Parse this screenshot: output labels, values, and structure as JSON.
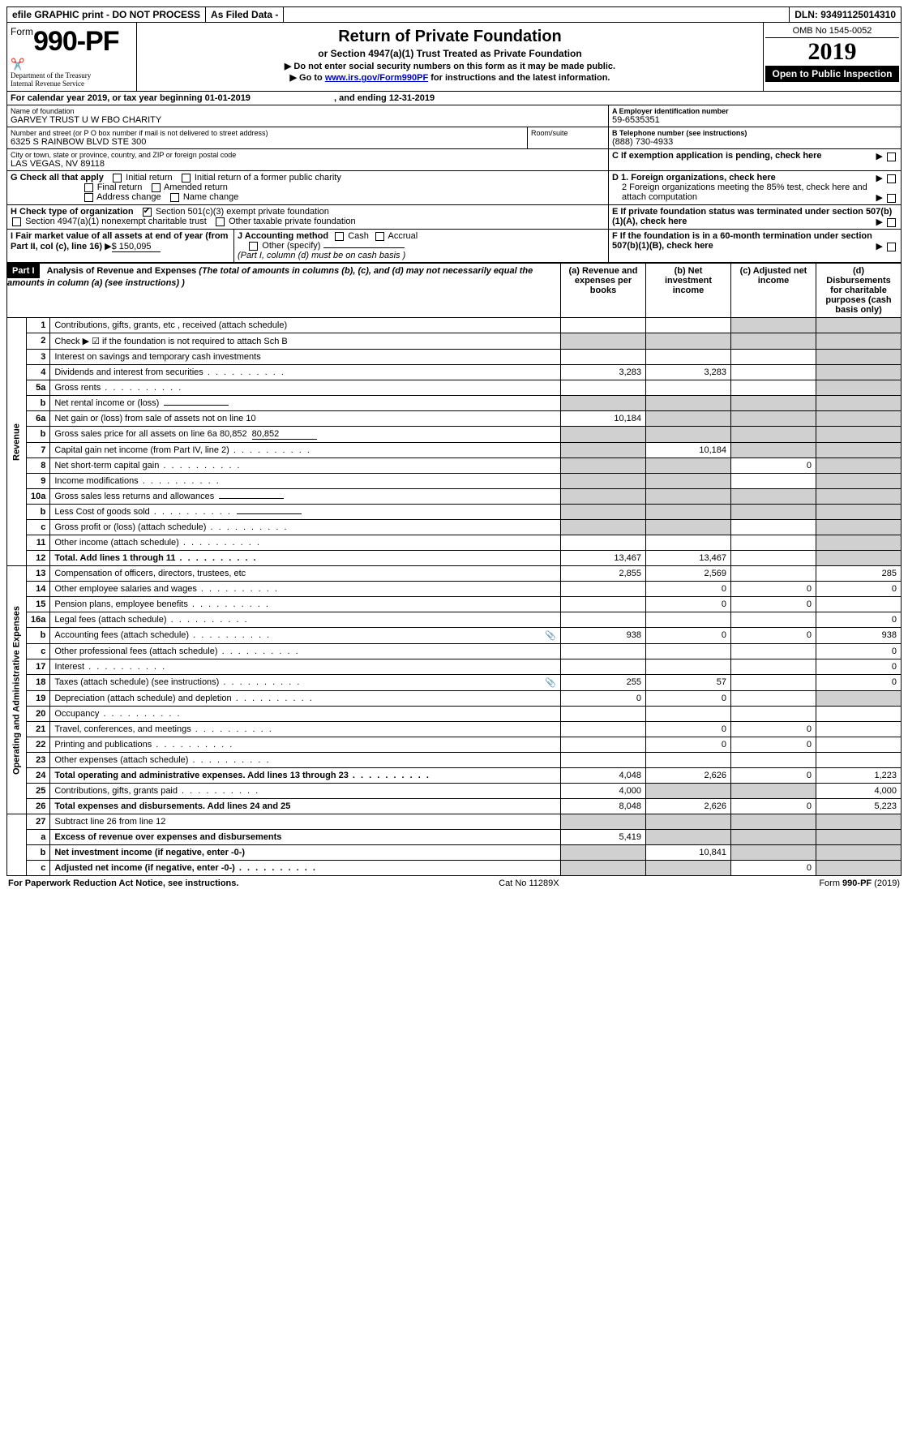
{
  "topbar": {
    "efile": "efile GRAPHIC print - DO NOT PROCESS",
    "asfiled": "As Filed Data -",
    "dln_label": "DLN:",
    "dln": "93491125014310"
  },
  "header": {
    "form_prefix": "Form",
    "form_number": "990-PF",
    "dept1": "Department of the Treasury",
    "dept2": "Internal Revenue Service",
    "title": "Return of Private Foundation",
    "subtitle": "or Section 4947(a)(1) Trust Treated as Private Foundation",
    "instr1": "▶ Do not enter social security numbers on this form as it may be made public.",
    "instr2_pre": "▶ Go to ",
    "instr2_link": "www.irs.gov/Form990PF",
    "instr2_post": " for instructions and the latest information.",
    "omb": "OMB No 1545-0052",
    "year": "2019",
    "open": "Open to Public Inspection"
  },
  "calendar": {
    "text_pre": "For calendar year 2019, or tax year beginning ",
    "begin": "01-01-2019",
    "text_mid": ", and ending ",
    "end": "12-31-2019"
  },
  "info": {
    "name_label": "Name of foundation",
    "name": "GARVEY TRUST U W FBO CHARITY",
    "ein_label": "A Employer identification number",
    "ein": "59-6535351",
    "addr_label": "Number and street (or P O  box number if mail is not delivered to street address)",
    "addr": "6325 S RAINBOW BLVD STE 300",
    "room_label": "Room/suite",
    "phone_label": "B Telephone number (see instructions)",
    "phone": "(888) 730-4933",
    "city_label": "City or town, state or province, country, and ZIP or foreign postal code",
    "city": "LAS VEGAS, NV  89118",
    "c_label": "C If exemption application is pending, check here",
    "g_label": "G Check all that apply",
    "g_initial": "Initial return",
    "g_initial_former": "Initial return of a former public charity",
    "g_final": "Final return",
    "g_amended": "Amended return",
    "g_address": "Address change",
    "g_name": "Name change",
    "d1": "D 1. Foreign organizations, check here",
    "d2": "2 Foreign organizations meeting the 85% test, check here and attach computation",
    "h_label": "H Check type of organization",
    "h_501c3": "Section 501(c)(3) exempt private foundation",
    "h_4947": "Section 4947(a)(1) nonexempt charitable trust",
    "h_other": "Other taxable private foundation",
    "e_label": "E  If private foundation status was terminated under section 507(b)(1)(A), check here",
    "i_label": "I Fair market value of all assets at end of year (from Part II, col  (c), line 16)",
    "i_value": "$  150,095",
    "j_label": "J Accounting method",
    "j_cash": "Cash",
    "j_accrual": "Accrual",
    "j_other": "Other (specify)",
    "j_note": "(Part I, column (d) must be on cash basis )",
    "f_label": "F  If the foundation is in a 60-month termination under section 507(b)(1)(B), check here"
  },
  "part1": {
    "label": "Part I",
    "title": "Analysis of Revenue and Expenses",
    "title_note": "(The total of amounts in columns (b), (c), and (d) may not necessarily equal the amounts in column (a) (see instructions) )",
    "col_a": "(a) Revenue and expenses per books",
    "col_b": "(b) Net investment income",
    "col_c": "(c) Adjusted net income",
    "col_d": "(d) Disbursements for charitable purposes (cash basis only)",
    "revenue_label": "Revenue",
    "expenses_label": "Operating and Administrative Expenses"
  },
  "rows": [
    {
      "n": "1",
      "d": "Contributions, gifts, grants, etc , received (attach schedule)",
      "a": "",
      "b": "",
      "c": "",
      "dd": "",
      "shadeB": false,
      "shadeC": true,
      "shadeD": true
    },
    {
      "n": "2",
      "d": "Check ▶ ☑ if the foundation is not required to attach Sch B",
      "a": "",
      "b": "",
      "c": "",
      "dd": "",
      "shadeA": true,
      "shadeB": true,
      "shadeC": true,
      "shadeD": true,
      "dotsInDesc": true
    },
    {
      "n": "3",
      "d": "Interest on savings and temporary cash investments",
      "a": "",
      "b": "",
      "c": "",
      "dd": "",
      "shadeD": true
    },
    {
      "n": "4",
      "d": "Dividends and interest from securities",
      "a": "3,283",
      "b": "3,283",
      "c": "",
      "dd": "",
      "shadeD": true,
      "dots": true
    },
    {
      "n": "5a",
      "d": "Gross rents",
      "a": "",
      "b": "",
      "c": "",
      "dd": "",
      "shadeD": true,
      "dots": true
    },
    {
      "n": "b",
      "d": "Net rental income or (loss)",
      "a": "",
      "b": "",
      "c": "",
      "dd": "",
      "shadeA": true,
      "shadeB": true,
      "shadeC": true,
      "shadeD": true,
      "inline": true
    },
    {
      "n": "6a",
      "d": "Net gain or (loss) from sale of assets not on line 10",
      "a": "10,184",
      "b": "",
      "c": "",
      "dd": "",
      "shadeB": true,
      "shadeC": true,
      "shadeD": true
    },
    {
      "n": "b",
      "d": "Gross sales price for all assets on line 6a",
      "a": "",
      "b": "",
      "c": "",
      "dd": "",
      "shadeA": true,
      "shadeB": true,
      "shadeC": true,
      "shadeD": true,
      "inline": true,
      "inline_val": "80,852"
    },
    {
      "n": "7",
      "d": "Capital gain net income (from Part IV, line 2)",
      "a": "",
      "b": "10,184",
      "c": "",
      "dd": "",
      "shadeA": true,
      "shadeC": true,
      "shadeD": true,
      "dots": true
    },
    {
      "n": "8",
      "d": "Net short-term capital gain",
      "a": "",
      "b": "",
      "c": "0",
      "dd": "",
      "shadeA": true,
      "shadeB": true,
      "shadeD": true,
      "dots": true
    },
    {
      "n": "9",
      "d": "Income modifications",
      "a": "",
      "b": "",
      "c": "",
      "dd": "",
      "shadeA": true,
      "shadeB": true,
      "shadeD": true,
      "dots": true
    },
    {
      "n": "10a",
      "d": "Gross sales less returns and allowances",
      "a": "",
      "b": "",
      "c": "",
      "dd": "",
      "shadeA": true,
      "shadeB": true,
      "shadeC": true,
      "shadeD": true,
      "inline": true
    },
    {
      "n": "b",
      "d": "Less  Cost of goods sold",
      "a": "",
      "b": "",
      "c": "",
      "dd": "",
      "shadeA": true,
      "shadeB": true,
      "shadeC": true,
      "shadeD": true,
      "inline": true,
      "dots": true
    },
    {
      "n": "c",
      "d": "Gross profit or (loss) (attach schedule)",
      "a": "",
      "b": "",
      "c": "",
      "dd": "",
      "shadeA": true,
      "shadeB": true,
      "shadeD": true,
      "dots": true
    },
    {
      "n": "11",
      "d": "Other income (attach schedule)",
      "a": "",
      "b": "",
      "c": "",
      "dd": "",
      "shadeD": true,
      "dots": true
    },
    {
      "n": "12",
      "d": "Total. Add lines 1 through 11",
      "a": "13,467",
      "b": "13,467",
      "c": "",
      "dd": "",
      "shadeD": true,
      "bold": true,
      "dots": true
    }
  ],
  "exp_rows": [
    {
      "n": "13",
      "d": "Compensation of officers, directors, trustees, etc",
      "a": "2,855",
      "b": "2,569",
      "c": "",
      "dd": "285"
    },
    {
      "n": "14",
      "d": "Other employee salaries and wages",
      "a": "",
      "b": "0",
      "c": "0",
      "dd": "0",
      "dots": true
    },
    {
      "n": "15",
      "d": "Pension plans, employee benefits",
      "a": "",
      "b": "0",
      "c": "0",
      "dd": "",
      "dots": true
    },
    {
      "n": "16a",
      "d": "Legal fees (attach schedule)",
      "a": "",
      "b": "",
      "c": "",
      "dd": "0",
      "dots": true
    },
    {
      "n": "b",
      "d": "Accounting fees (attach schedule)",
      "a": "938",
      "b": "0",
      "c": "0",
      "dd": "938",
      "dots": true,
      "clip": true
    },
    {
      "n": "c",
      "d": "Other professional fees (attach schedule)",
      "a": "",
      "b": "",
      "c": "",
      "dd": "0",
      "dots": true
    },
    {
      "n": "17",
      "d": "Interest",
      "a": "",
      "b": "",
      "c": "",
      "dd": "0",
      "dots": true
    },
    {
      "n": "18",
      "d": "Taxes (attach schedule) (see instructions)",
      "a": "255",
      "b": "57",
      "c": "",
      "dd": "0",
      "dots": true,
      "clip": true
    },
    {
      "n": "19",
      "d": "Depreciation (attach schedule) and depletion",
      "a": "0",
      "b": "0",
      "c": "",
      "dd": "",
      "shadeD": true,
      "dots": true
    },
    {
      "n": "20",
      "d": "Occupancy",
      "a": "",
      "b": "",
      "c": "",
      "dd": "",
      "dots": true
    },
    {
      "n": "21",
      "d": "Travel, conferences, and meetings",
      "a": "",
      "b": "0",
      "c": "0",
      "dd": "",
      "dots": true
    },
    {
      "n": "22",
      "d": "Printing and publications",
      "a": "",
      "b": "0",
      "c": "0",
      "dd": "",
      "dots": true
    },
    {
      "n": "23",
      "d": "Other expenses (attach schedule)",
      "a": "",
      "b": "",
      "c": "",
      "dd": "",
      "dots": true
    },
    {
      "n": "24",
      "d": "Total operating and administrative expenses. Add lines 13 through 23",
      "a": "4,048",
      "b": "2,626",
      "c": "0",
      "dd": "1,223",
      "bold": true,
      "dots": true
    },
    {
      "n": "25",
      "d": "Contributions, gifts, grants paid",
      "a": "4,000",
      "b": "",
      "c": "",
      "dd": "4,000",
      "shadeB": true,
      "shadeC": true,
      "dots": true
    },
    {
      "n": "26",
      "d": "Total expenses and disbursements. Add lines 24 and 25",
      "a": "8,048",
      "b": "2,626",
      "c": "0",
      "dd": "5,223",
      "bold": true
    }
  ],
  "final_rows": [
    {
      "n": "27",
      "d": "Subtract line 26 from line 12",
      "a": "",
      "b": "",
      "c": "",
      "dd": "",
      "shadeA": true,
      "shadeB": true,
      "shadeC": true,
      "shadeD": true
    },
    {
      "n": "a",
      "d": "Excess of revenue over expenses and disbursements",
      "a": "5,419",
      "b": "",
      "c": "",
      "dd": "",
      "bold": true,
      "shadeB": true,
      "shadeC": true,
      "shadeD": true
    },
    {
      "n": "b",
      "d": "Net investment income (if negative, enter -0-)",
      "a": "",
      "b": "10,841",
      "c": "",
      "dd": "",
      "bold": true,
      "shadeA": true,
      "shadeC": true,
      "shadeD": true
    },
    {
      "n": "c",
      "d": "Adjusted net income (if negative, enter -0-)",
      "a": "",
      "b": "",
      "c": "0",
      "dd": "",
      "bold": true,
      "shadeA": true,
      "shadeB": true,
      "shadeD": true,
      "dots": true
    }
  ],
  "footer": {
    "left": "For Paperwork Reduction Act Notice, see instructions.",
    "mid": "Cat  No  11289X",
    "right": "Form 990-PF (2019)"
  }
}
